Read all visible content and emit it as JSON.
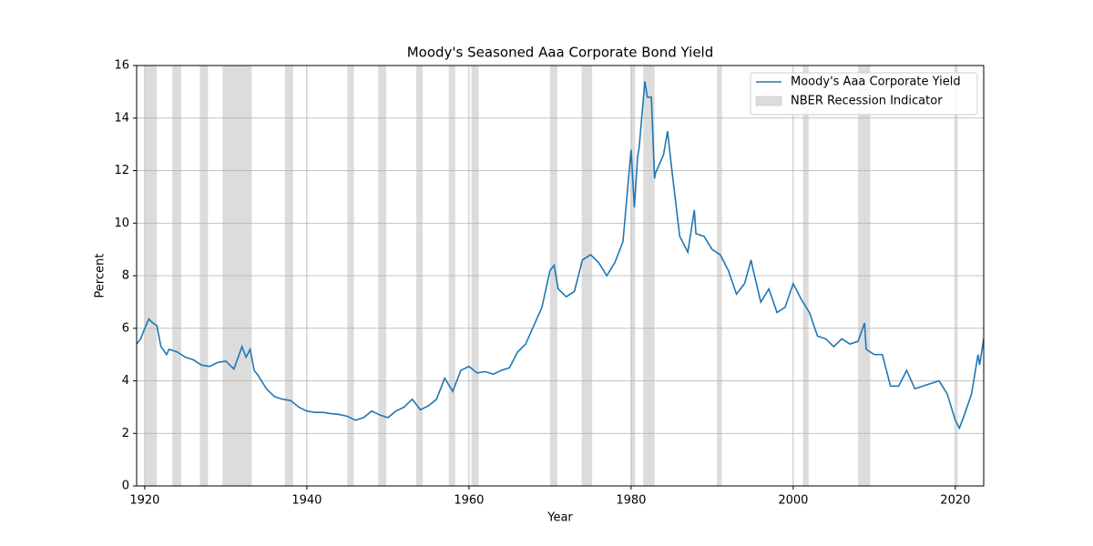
{
  "chart_data": {
    "type": "line",
    "title": "Moody's Seasoned Aaa Corporate Bond Yield",
    "xlabel": "Year",
    "ylabel": "Percent",
    "xlim": [
      1919,
      2023.5
    ],
    "xticks": [
      1920,
      1940,
      1960,
      1980,
      2000,
      2020
    ],
    "ylim": [
      0,
      16
    ],
    "yticks": [
      0,
      2,
      4,
      6,
      8,
      10,
      12,
      14,
      16
    ],
    "grid": true,
    "legend": "upper right",
    "x": [
      1919,
      1919.5,
      1920,
      1920.5,
      1921,
      1921.5,
      1922,
      1922.7,
      1923,
      1924,
      1925,
      1926,
      1927,
      1928,
      1929,
      1930,
      1931,
      1932,
      1932.5,
      1933,
      1933.5,
      1934,
      1935,
      1936,
      1937,
      1938,
      1939,
      1940,
      1941,
      1942,
      1943,
      1944,
      1945,
      1946,
      1947,
      1948,
      1949,
      1950,
      1951,
      1952,
      1953,
      1954,
      1955,
      1956,
      1957,
      1958,
      1959,
      1960,
      1961,
      1962,
      1963,
      1964,
      1965,
      1966,
      1967,
      1968,
      1969,
      1970,
      1970.5,
      1971,
      1972,
      1973,
      1974,
      1975,
      1976,
      1977,
      1978,
      1979,
      1980,
      1980.4,
      1980.8,
      1981,
      1981.7,
      1982,
      1982.5,
      1982.9,
      1983,
      1984,
      1984.5,
      1985,
      1986,
      1987,
      1987.8,
      1988,
      1989,
      1990,
      1991,
      1992,
      1993,
      1994,
      1994.8,
      1995,
      1996,
      1997,
      1998,
      1999,
      2000,
      2001,
      2002,
      2003,
      2004,
      2005,
      2006,
      2007,
      2008,
      2008.8,
      2009,
      2010,
      2011,
      2012,
      2013,
      2014,
      2015,
      2016,
      2017,
      2018,
      2019,
      2020,
      2020.5,
      2021,
      2022,
      2022.8,
      2023,
      2023.5
    ],
    "series": [
      {
        "name": "Moody's Aaa Corporate Yield",
        "color": "#1f77b4",
        "values": [
          5.4,
          5.6,
          6.0,
          6.35,
          6.2,
          6.1,
          5.3,
          5.0,
          5.2,
          5.1,
          4.9,
          4.8,
          4.6,
          4.55,
          4.7,
          4.75,
          4.45,
          5.3,
          4.9,
          5.2,
          4.4,
          4.2,
          3.7,
          3.4,
          3.3,
          3.25,
          3.0,
          2.85,
          2.8,
          2.8,
          2.75,
          2.72,
          2.65,
          2.5,
          2.6,
          2.85,
          2.7,
          2.6,
          2.85,
          3.0,
          3.3,
          2.9,
          3.05,
          3.3,
          4.1,
          3.6,
          4.4,
          4.55,
          4.3,
          4.35,
          4.25,
          4.4,
          4.5,
          5.1,
          5.4,
          6.1,
          6.8,
          8.2,
          8.4,
          7.5,
          7.2,
          7.4,
          8.6,
          8.8,
          8.5,
          8.0,
          8.5,
          9.3,
          12.8,
          10.6,
          12.5,
          12.9,
          15.4,
          14.8,
          14.8,
          11.7,
          11.9,
          12.6,
          13.5,
          12.1,
          9.5,
          8.9,
          10.5,
          9.6,
          9.5,
          9.0,
          8.8,
          8.2,
          7.3,
          7.7,
          8.6,
          8.3,
          7.0,
          7.5,
          6.6,
          6.8,
          7.7,
          7.1,
          6.6,
          5.7,
          5.6,
          5.3,
          5.6,
          5.4,
          5.5,
          6.2,
          5.2,
          5.0,
          5.0,
          3.8,
          3.8,
          4.4,
          3.7,
          3.8,
          3.9,
          4.0,
          3.5,
          2.5,
          2.2,
          2.6,
          3.5,
          5.0,
          4.6,
          5.6
        ]
      }
    ],
    "shaded": {
      "name": "NBER Recession Indicator",
      "color": "#dcdcdc",
      "ranges": [
        [
          1920.0,
          1921.5
        ],
        [
          1923.4,
          1924.5
        ],
        [
          1926.8,
          1927.8
        ],
        [
          1929.6,
          1933.2
        ],
        [
          1937.3,
          1938.3
        ],
        [
          1945.0,
          1945.8
        ],
        [
          1948.8,
          1949.8
        ],
        [
          1953.5,
          1954.3
        ],
        [
          1957.5,
          1958.3
        ],
        [
          1960.3,
          1961.2
        ],
        [
          1970.0,
          1970.9
        ],
        [
          1973.9,
          1975.2
        ],
        [
          1980.0,
          1980.5
        ],
        [
          1981.5,
          1982.9
        ],
        [
          1990.6,
          1991.2
        ],
        [
          2001.2,
          2001.9
        ],
        [
          2008.0,
          2009.5
        ],
        [
          2020.1,
          2020.3
        ]
      ]
    }
  }
}
